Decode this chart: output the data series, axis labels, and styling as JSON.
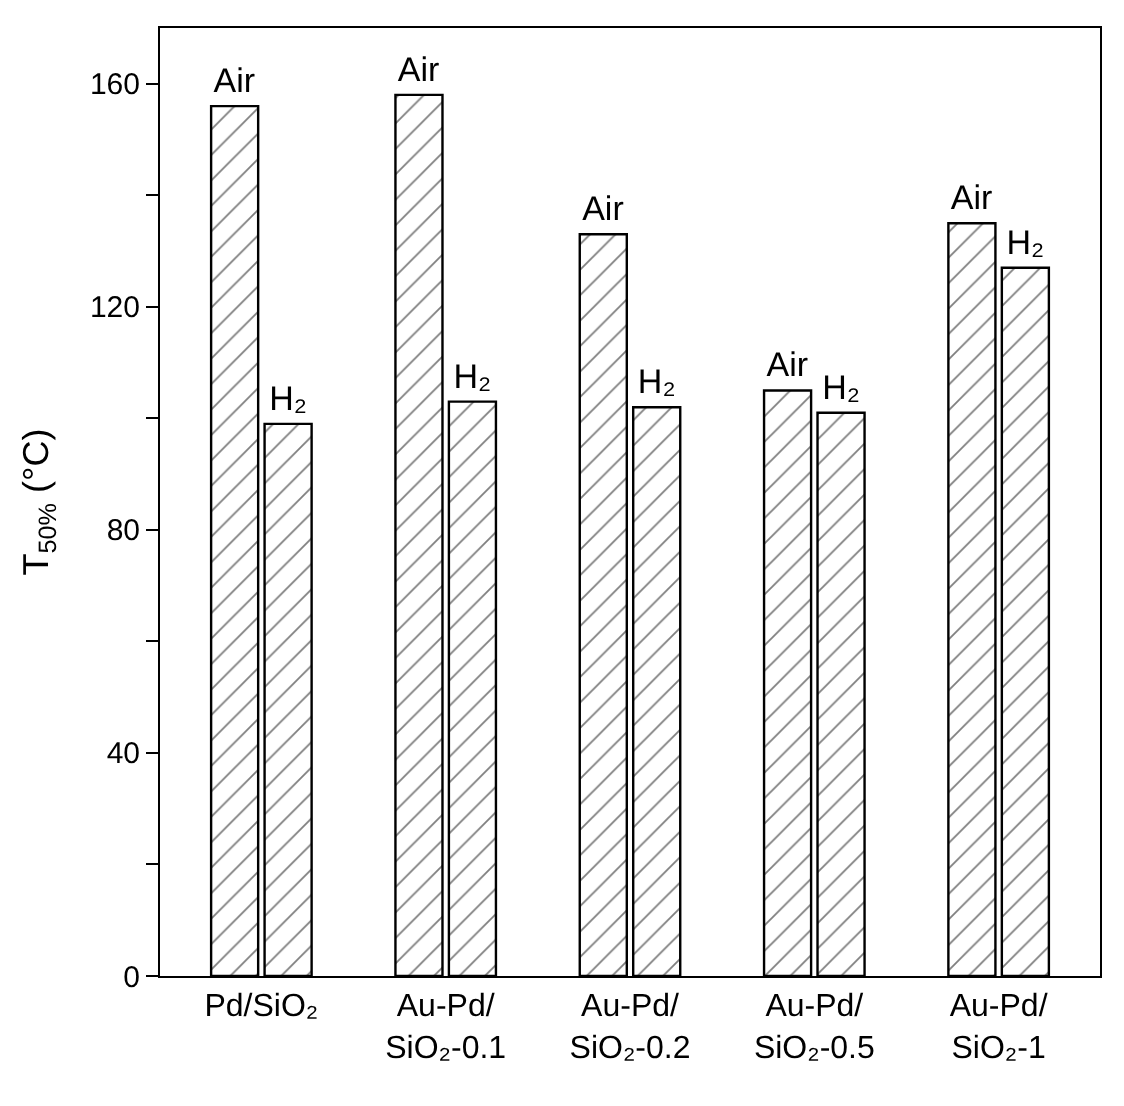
{
  "chart_data": {
    "type": "bar",
    "ylabel": "T$_{50%}$ (°C)",
    "categories": [
      "Pd/SiO₂",
      "Au-Pd/\nSiO₂-0.1",
      "Au-Pd/\nSiO₂-0.2",
      "Au-Pd/\nSiO₂-0.5",
      "Au-Pd/\nSiO₂-1"
    ],
    "series": [
      {
        "name": "Air",
        "color": "#000000",
        "values": [
          156,
          158,
          133,
          105,
          135
        ]
      },
      {
        "name": "H₂",
        "color": "#000000",
        "values": [
          99,
          103,
          102,
          101,
          127
        ]
      }
    ],
    "ylim": [
      0,
      170
    ],
    "yticks": [
      0,
      {
        "value": 20,
        "label": null
      },
      40,
      {
        "value": 60,
        "label": null
      },
      80,
      {
        "value": 100,
        "label": null
      },
      120,
      {
        "value": 140,
        "label": null
      },
      160
    ],
    "legend": false
  }
}
